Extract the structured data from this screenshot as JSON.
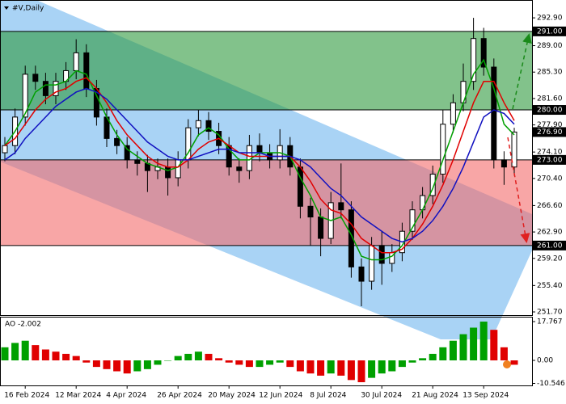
{
  "chart_data": [
    {
      "type": "candlestick",
      "title": "#V,Daily",
      "categories": [
        null,
        null,
        "16 Feb 2024",
        null,
        null,
        null,
        null,
        "12 Mar 2024",
        null,
        null,
        null,
        null,
        "4 Apr 2024",
        null,
        null,
        null,
        null,
        "26 Apr 2024",
        null,
        null,
        null,
        null,
        "20 May 2024",
        null,
        null,
        null,
        null,
        "12 Jun 2024",
        null,
        null,
        null,
        null,
        "8 Jul 2024",
        null,
        null,
        null,
        null,
        "30 Jul 2024",
        null,
        null,
        null,
        null,
        "21 Aug 2024",
        null,
        null,
        null,
        null,
        "13 Sep 2024",
        null,
        null,
        null
      ],
      "open": [
        274,
        275,
        279,
        285,
        284,
        282,
        284,
        285.5,
        288,
        283,
        279,
        276,
        275,
        273,
        272.5,
        271.5,
        272,
        270.5,
        273,
        277.5,
        278.5,
        277,
        275,
        272,
        271.5,
        275,
        274,
        273,
        275,
        272,
        266.5,
        265,
        262,
        267,
        266,
        258,
        256,
        261,
        258.5,
        260,
        263,
        266,
        268,
        271,
        278,
        281,
        284,
        290,
        286,
        273,
        272
      ],
      "high": [
        276.2,
        280.2,
        286.2,
        286.2,
        285.2,
        285.2,
        286.7,
        289.9,
        289.2,
        284.2,
        280.2,
        277.2,
        276.2,
        274.2,
        273.7,
        273.2,
        273.2,
        274.2,
        278.7,
        280,
        279.7,
        278.2,
        276.2,
        273.2,
        276.5,
        276.7,
        275.2,
        277.3,
        276.2,
        273.2,
        267.7,
        266.2,
        268.5,
        272.5,
        267.2,
        259.2,
        262.2,
        263,
        261.2,
        264.2,
        267.2,
        269.2,
        272.2,
        280,
        282.2,
        286.5,
        292.9,
        291.5,
        287.2,
        274.2,
        277.5
      ],
      "low": [
        272.8,
        273.8,
        277.8,
        282.8,
        280.8,
        280.8,
        282.8,
        284.3,
        281.8,
        277.8,
        274.8,
        273.8,
        271.8,
        270.8,
        268.5,
        270.3,
        268,
        269.3,
        271.8,
        276.3,
        275.8,
        273.8,
        270.8,
        269.8,
        270.3,
        272.8,
        271.8,
        271.8,
        270.8,
        264.8,
        261,
        259.5,
        261.2,
        264.8,
        256.5,
        252.5,
        254.8,
        255.5,
        257.3,
        258.8,
        261.8,
        264.8,
        266.8,
        269.8,
        276.8,
        279.8,
        282.8,
        284.8,
        271.8,
        269.5,
        270.8
      ],
      "close": [
        275,
        279,
        285,
        284,
        282,
        284,
        285.5,
        288,
        283,
        279,
        276,
        275,
        273,
        272.5,
        271.5,
        272,
        270.5,
        273,
        277.5,
        278.5,
        277,
        275,
        272,
        271.5,
        275,
        274,
        273,
        275,
        272,
        266.5,
        265,
        262,
        267,
        266,
        258,
        256,
        261,
        258.5,
        260,
        263,
        266,
        268,
        271,
        278,
        281,
        284,
        290,
        286,
        273,
        272,
        276.9
      ],
      "lines": [
        {
          "color": "#00a000",
          "values": [
            275,
            277,
            279.5,
            282.5,
            283.5,
            283.5,
            284,
            285.5,
            285,
            282,
            279,
            276.5,
            274.5,
            273.5,
            272.5,
            272,
            271.5,
            272,
            274,
            276.5,
            277.5,
            276.5,
            274.5,
            273,
            273,
            274,
            274,
            274,
            273.5,
            270.5,
            268,
            265,
            264.5,
            265,
            262.5,
            259.5,
            259,
            259,
            259.5,
            261,
            263.5,
            266,
            269,
            273,
            277,
            281,
            285,
            287,
            283,
            278,
            276.5
          ]
        },
        {
          "color": "#e00000",
          "values": [
            275,
            276,
            278,
            280,
            281.5,
            282.5,
            283,
            284,
            284.5,
            283,
            281,
            278.5,
            276.5,
            275,
            273.5,
            272.5,
            272,
            272,
            273,
            274.5,
            275.5,
            276,
            275,
            274,
            273.5,
            273.5,
            273.5,
            273.5,
            273.5,
            272,
            270,
            267.5,
            266,
            265.5,
            264,
            262,
            261,
            260,
            260,
            260.5,
            262,
            264,
            266.5,
            269.5,
            273,
            277,
            281,
            284,
            284,
            281,
            278.5
          ]
        },
        {
          "color": "#1010c0",
          "values": [
            273,
            274,
            276,
            277.5,
            279,
            280.5,
            281.5,
            282.5,
            283,
            282.5,
            281.5,
            280,
            278.5,
            277,
            275.5,
            274.5,
            273.5,
            273,
            273,
            273.5,
            274,
            274.5,
            274.5,
            274,
            274,
            274,
            273.5,
            273.5,
            273.5,
            273,
            272,
            270.5,
            269,
            268,
            266.5,
            265,
            264,
            263,
            262,
            261.5,
            262,
            263,
            264.5,
            266.5,
            269,
            272,
            275.5,
            279,
            280,
            279.5,
            278
          ]
        }
      ],
      "ylim": [
        251.25,
        295.4
      ],
      "yticks": [
        {
          "value": 292.9,
          "label": "292.90"
        },
        {
          "value": 289,
          "label": "289.00"
        },
        {
          "value": 285.3,
          "label": "285.30"
        },
        {
          "value": 281.6,
          "label": "281.60"
        },
        {
          "value": 277.9,
          "label": "277.90"
        },
        {
          "value": 274.1,
          "label": "274.10"
        },
        {
          "value": 270.4,
          "label": "270.40"
        },
        {
          "value": 266.6,
          "label": "266.60"
        },
        {
          "value": 262.9,
          "label": "262.90"
        },
        {
          "value": 259.2,
          "label": "259.20"
        },
        {
          "value": 255.4,
          "label": "255.40"
        },
        {
          "value": 251.7,
          "label": "251.70"
        }
      ],
      "levels": [
        {
          "value": 291,
          "label": "291.00"
        },
        {
          "value": 280,
          "label": "280.00"
        },
        {
          "value": 273,
          "label": "273.00"
        },
        {
          "value": 261,
          "label": "261.00"
        }
      ],
      "last_price": {
        "value": 276.9,
        "label": "276.90"
      },
      "zones": [
        {
          "from": 280,
          "to": 291,
          "color": "#2e9a3e"
        },
        {
          "from": 261,
          "to": 273,
          "color": "#f46a6a"
        }
      ]
    },
    {
      "type": "bar",
      "title": "AO -2.002",
      "values": [
        6,
        8,
        9,
        7,
        5,
        4,
        3,
        2,
        -1,
        -3,
        -4,
        -5,
        -6,
        -5,
        -4,
        -2,
        0,
        2,
        3,
        4,
        3,
        1,
        -1,
        -2,
        -3,
        -3,
        -2,
        -1,
        -3,
        -5,
        -6,
        -7,
        -6,
        -7,
        -9,
        -10,
        -8,
        -6,
        -5,
        -3,
        -1,
        1,
        3,
        6,
        9,
        12,
        15,
        17.767,
        14,
        6,
        -2.002
      ],
      "up_color": "#00a000",
      "down_color": "#e00000",
      "ylim": [
        -11.1,
        20
      ],
      "yticks": [
        17.767,
        {
          "value": 0,
          "label": "0.00"
        },
        -10.546
      ]
    }
  ]
}
